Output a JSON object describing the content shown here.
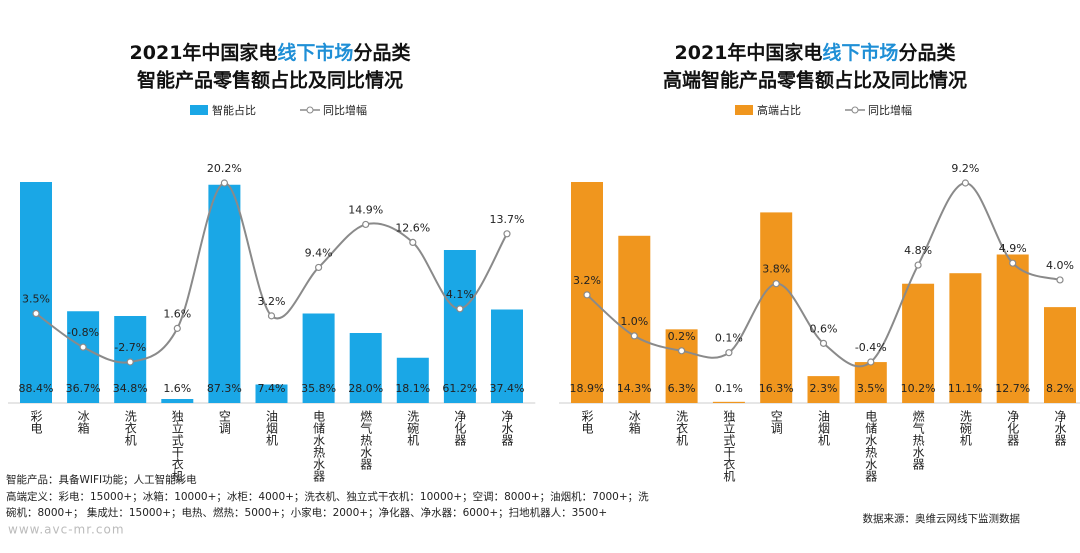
{
  "chart_data": [
    {
      "type": "combo",
      "title": {
        "prefix": "2021年中国家电",
        "highlight": "线下市场",
        "suffix": "分品类",
        "line2": "智能产品零售额占比及同比情况"
      },
      "highlight_color": "#1f8fd6",
      "categories": [
        "彩电",
        "冰箱",
        "洗衣机",
        "独立式干衣机",
        "空调",
        "油烟机",
        "电储水热水器",
        "燃气热水器",
        "洗碗机",
        "净化器",
        "净水器"
      ],
      "series": [
        {
          "name": "智能占比",
          "type": "bar",
          "color": "#1aa7e6",
          "values": [
            88.4,
            36.7,
            34.8,
            1.6,
            87.3,
            7.4,
            35.8,
            28.0,
            18.1,
            61.2,
            37.4
          ],
          "value_labels": [
            "88.4%",
            "36.7%",
            "34.8%",
            "1.6%",
            "87.3%",
            "7.4%",
            "35.8%",
            "28.0%",
            "18.1%",
            "61.2%",
            "37.4%"
          ]
        },
        {
          "name": "同比增幅",
          "type": "line",
          "axis": "y2",
          "color": "#8a8a8a",
          "values": [
            3.5,
            -0.8,
            -2.7,
            1.6,
            20.2,
            3.2,
            9.4,
            14.9,
            12.6,
            4.1,
            13.7
          ],
          "value_labels": [
            "3.5%",
            "-0.8%",
            "-2.7%",
            "1.6%",
            "20.2%",
            "3.2%",
            "9.4%",
            "14.9%",
            "12.6%",
            "4.1%",
            "13.7%"
          ]
        }
      ]
    },
    {
      "type": "combo",
      "title": {
        "prefix": "2021年中国家电",
        "highlight": "线下市场",
        "suffix": "分品类",
        "line2": "高端智能产品零售额占比及同比情况"
      },
      "highlight_color": "#1f8fd6",
      "categories": [
        "彩电",
        "冰箱",
        "洗衣机",
        "独立式干衣机",
        "空调",
        "油烟机",
        "电储水热水器",
        "燃气热水器",
        "洗碗机",
        "净化器",
        "净水器"
      ],
      "series": [
        {
          "name": "高端占比",
          "type": "bar",
          "color": "#f0961e",
          "values": [
            18.9,
            14.3,
            6.3,
            0.1,
            16.3,
            2.3,
            3.5,
            10.2,
            11.1,
            12.7,
            8.2
          ],
          "value_labels": [
            "18.9%",
            "14.3%",
            "6.3%",
            "0.1%",
            "16.3%",
            "2.3%",
            "3.5%",
            "10.2%",
            "11.1%",
            "12.7%",
            "8.2%"
          ]
        },
        {
          "name": "同比增幅",
          "type": "line",
          "axis": "y2",
          "color": "#8a8a8a",
          "values": [
            3.2,
            1.0,
            0.2,
            0.1,
            3.8,
            0.6,
            -0.4,
            4.8,
            9.2,
            4.9,
            4.0
          ],
          "value_labels": [
            "3.2%",
            "1.0%",
            "0.2%",
            "0.1%",
            "3.8%",
            "0.6%",
            "-0.4%",
            "4.8%",
            "9.2%",
            "4.9%",
            "4.0%"
          ]
        }
      ]
    }
  ],
  "footer": {
    "notes": [
      "智能产品：具备WIFI功能；人工智能彩电",
      "高端定义：彩电：15000+；冰箱：10000+；冰柜：4000+；洗衣机、独立式干衣机：10000+；空调：8000+；油烟机：7000+；洗",
      "碗机：8000+；    集成灶：15000+；电热、燃热：5000+；小家电：2000+；净化器、净水器：6000+；扫地机器人：3500+"
    ],
    "watermark": "www.avc-mr.com",
    "source": "数据来源：奥维云网线下监测数据"
  }
}
